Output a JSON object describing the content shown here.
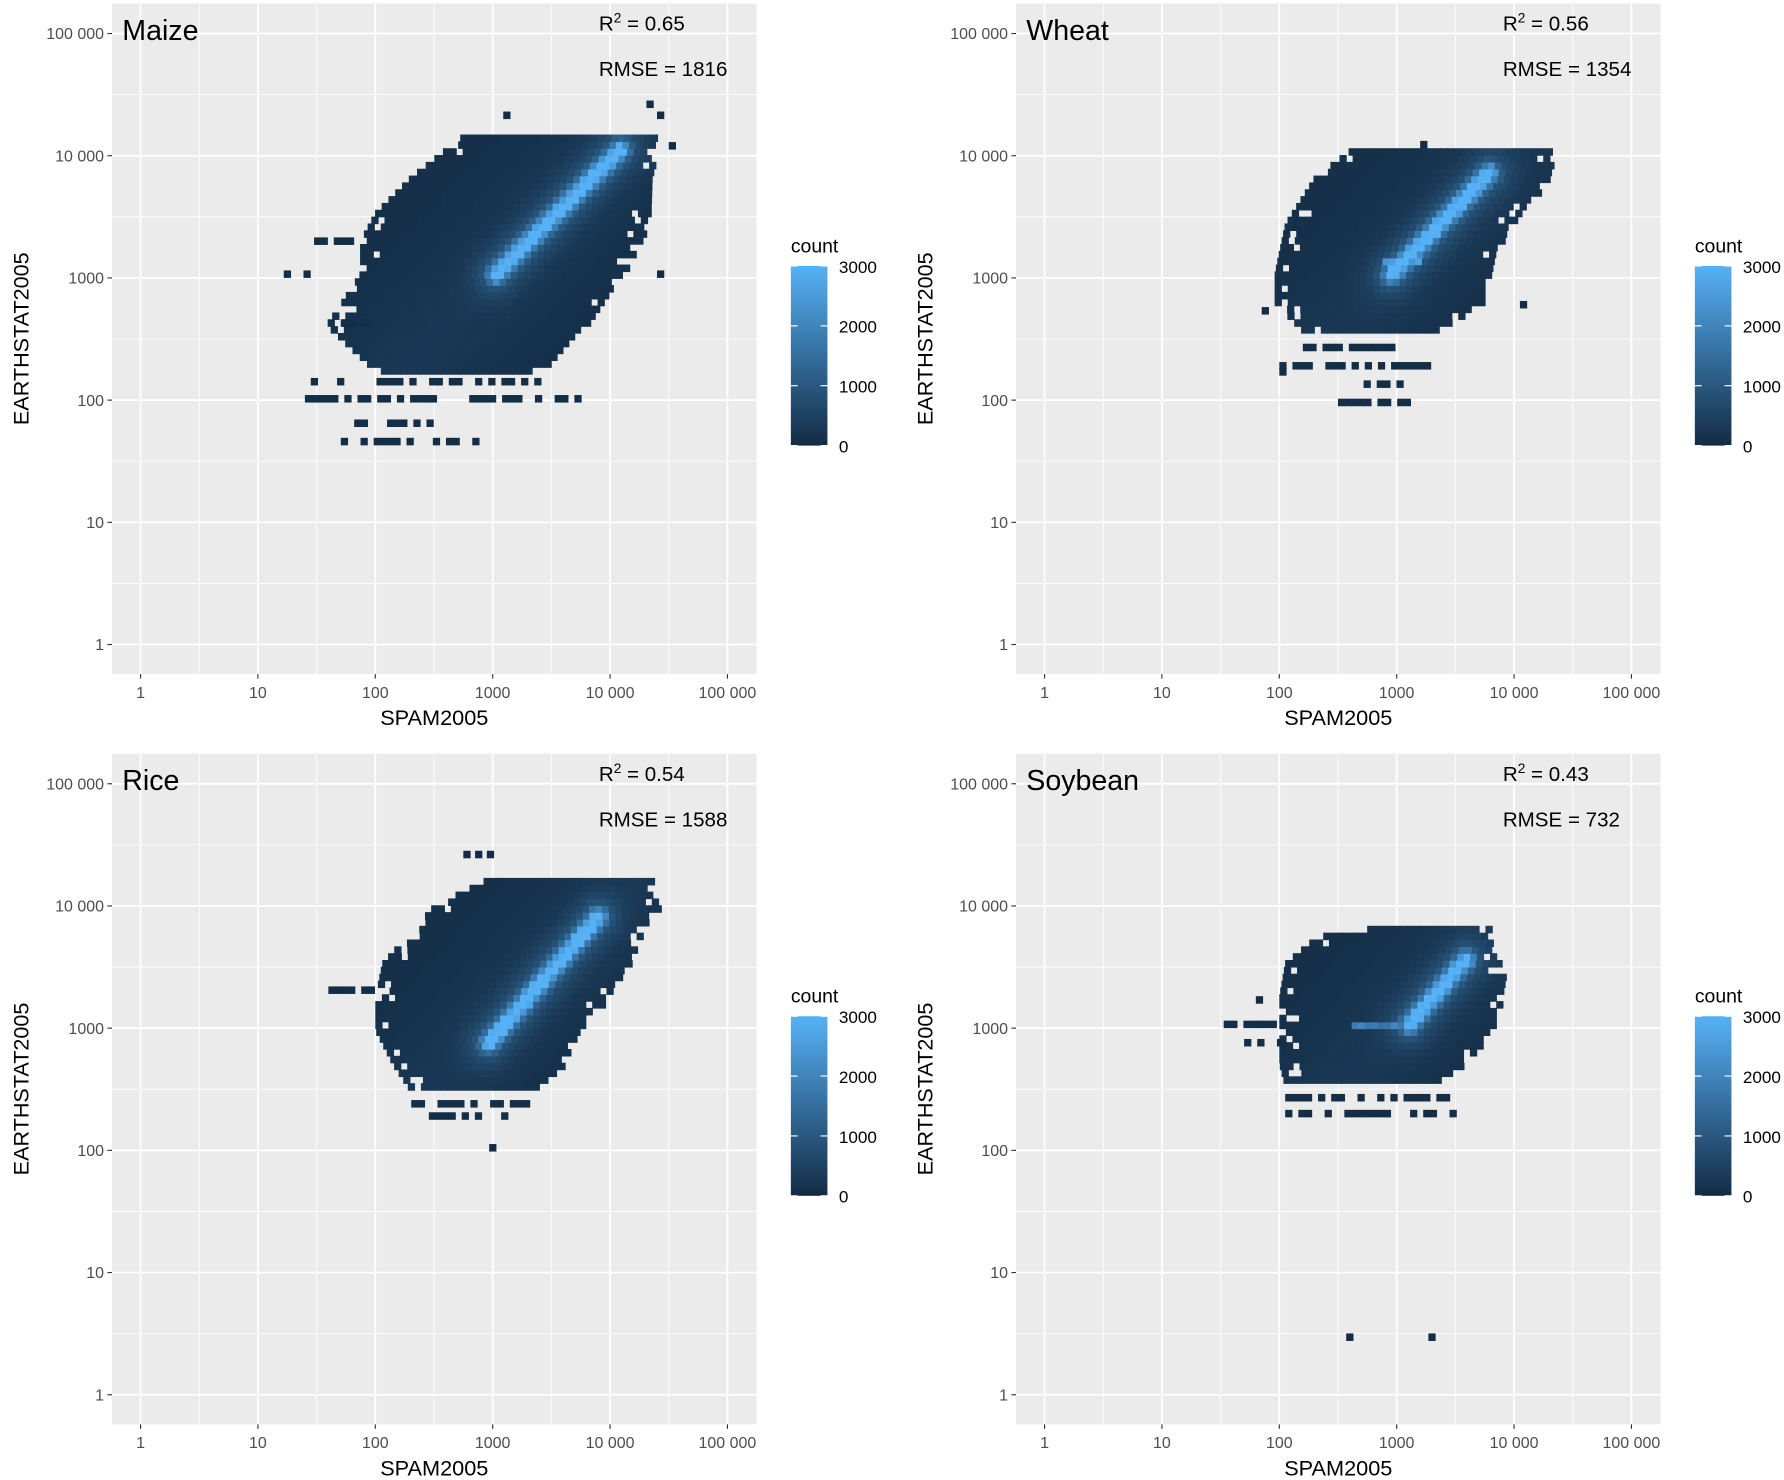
{
  "colors": {
    "panel_bg": "#EBEBEB",
    "grid": "#FFFFFF",
    "low": "#132B43",
    "high": "#56B1F7"
  },
  "chart_data": [
    {
      "type": "heatmap",
      "title": "Maize",
      "xlabel": "SPAM2005",
      "ylabel": "EARTHSTAT2005",
      "r2_prefix": "R",
      "r2_sup": "2",
      "r2_text": " = 0.65",
      "rmse_text": "RMSE = 1816",
      "r2": 0.65,
      "rmse": 1816,
      "body_rows_log10": [
        [
          4.14,
          2.76,
          4.35
        ],
        [
          3.79,
          2.3,
          4.35
        ],
        [
          3.5,
          2.0,
          4.3
        ],
        [
          3.27,
          1.87,
          4.25
        ],
        [
          3.0,
          1.87,
          4.1
        ],
        [
          2.58,
          1.58,
          3.77
        ],
        [
          2.2,
          2.0,
          3.38
        ]
      ],
      "sparse_rows_log10": [
        [
          3.27,
          1.31,
          1.87
        ],
        [
          3.0,
          1.22,
          1.5
        ],
        [
          2.6,
          1.6,
          1.9
        ],
        [
          2.12,
          1.45,
          3.4
        ],
        [
          1.98,
          1.4,
          3.85
        ],
        [
          1.78,
          1.82,
          2.45
        ],
        [
          1.63,
          1.65,
          3.09
        ]
      ],
      "points_log10": [
        [
          4.31,
          4.39
        ],
        [
          4.4,
          4.3
        ],
        [
          3.09,
          4.3
        ],
        [
          4.4,
          3.0
        ],
        [
          4.5,
          4.05
        ]
      ],
      "ridge": {
        "from": [
          3.0,
          3.0
        ],
        "to": [
          4.06,
          4.02
        ],
        "peak": 3000
      },
      "band": null
    },
    {
      "type": "heatmap",
      "title": "Wheat",
      "xlabel": "SPAM2005",
      "ylabel": "EARTHSTAT2005",
      "r2_prefix": "R",
      "r2_sup": "2",
      "r2_text": " = 0.56",
      "rmse_text": "RMSE = 1354",
      "r2": 0.56,
      "rmse": 1354,
      "body_rows_log10": [
        [
          4.0,
          2.59,
          4.29
        ],
        [
          3.79,
          2.3,
          4.29
        ],
        [
          3.41,
          2.05,
          3.95
        ],
        [
          3.0,
          1.96,
          3.76
        ],
        [
          2.76,
          1.96,
          3.7
        ],
        [
          2.53,
          2.2,
          3.32
        ]
      ],
      "sparse_rows_log10": [
        [
          2.4,
          2.2,
          3.2
        ],
        [
          2.25,
          2.0,
          3.25
        ],
        [
          2.1,
          2.55,
          3.2
        ],
        [
          1.95,
          2.5,
          3.1
        ]
      ],
      "points_log10": [
        [
          3.2,
          4.06
        ],
        [
          4.05,
          2.75
        ],
        [
          2.0,
          2.2
        ],
        [
          1.85,
          2.7
        ]
      ],
      "ridge": {
        "from": [
          2.93,
          3.0
        ],
        "to": [
          3.76,
          3.83
        ],
        "peak": 3000
      },
      "band": {
        "ly": 3.1,
        "from": 2.85,
        "to": 3.2,
        "peak": 2800
      }
    },
    {
      "type": "heatmap",
      "title": "Rice",
      "xlabel": "SPAM2005",
      "ylabel": "EARTHSTAT2005",
      "r2_prefix": "R",
      "r2_sup": "2",
      "r2_text": " = 0.54",
      "rmse_text": "RMSE = 1588",
      "r2": 0.54,
      "rmse": 1588,
      "body_rows_log10": [
        [
          4.2,
          2.99,
          4.35
        ],
        [
          3.97,
          2.5,
          4.4
        ],
        [
          3.5,
          2.06,
          4.15
        ],
        [
          3.23,
          2.0,
          3.96
        ],
        [
          2.95,
          2.0,
          3.75
        ],
        [
          2.67,
          2.15,
          3.6
        ],
        [
          2.44,
          2.31,
          3.28
        ]
      ],
      "sparse_rows_log10": [
        [
          3.28,
          1.6,
          2.0
        ],
        [
          2.35,
          2.25,
          3.35
        ],
        [
          2.25,
          2.4,
          3.1
        ]
      ],
      "points_log10": [
        [
          2.97,
          1.99
        ],
        [
          2.75,
          4.39
        ],
        [
          2.85,
          4.39
        ],
        [
          2.95,
          4.39
        ],
        [
          1.66,
          3.28
        ]
      ],
      "ridge": {
        "from": [
          2.94,
          2.85
        ],
        "to": [
          3.87,
          3.88
        ],
        "peak": 3000
      },
      "band": null
    },
    {
      "type": "heatmap",
      "title": "Soybean",
      "xlabel": "SPAM2005",
      "ylabel": "EARTHSTAT2005",
      "r2_prefix": "R",
      "r2_sup": "2",
      "r2_text": " = 0.43",
      "rmse_text": "RMSE = 732",
      "r2": 0.43,
      "rmse": 732,
      "body_rows_log10": [
        [
          3.83,
          2.78,
          3.76
        ],
        [
          3.7,
          2.3,
          3.76
        ],
        [
          3.5,
          2.05,
          3.86
        ],
        [
          3.23,
          2.0,
          3.9
        ],
        [
          2.95,
          2.0,
          3.78
        ],
        [
          2.67,
          2.0,
          3.56
        ],
        [
          2.49,
          2.05,
          3.3
        ]
      ],
      "sparse_rows_log10": [
        [
          3.0,
          1.47,
          2.0
        ],
        [
          2.85,
          1.7,
          2.0
        ],
        [
          2.4,
          2.05,
          3.55
        ],
        [
          2.27,
          2.05,
          3.55
        ]
      ],
      "points_log10": [
        [
          2.57,
          0.44
        ],
        [
          3.27,
          0.44
        ],
        [
          1.8,
          3.2
        ]
      ],
      "ridge": {
        "from": [
          3.08,
          3.0
        ],
        "to": [
          3.56,
          3.53
        ],
        "peak": 3000
      },
      "band": {
        "ly": 3.0,
        "from": 2.6,
        "to": 3.1,
        "peak": 2200
      }
    }
  ],
  "axes": {
    "x_ticks": [
      "1",
      "10",
      "100",
      "1000",
      "10 000",
      "100 000"
    ],
    "y_ticks": [
      "1",
      "10",
      "100",
      "1000",
      "10 000",
      "100 000"
    ],
    "log10_range_x": [
      -0.25,
      5.25
    ],
    "log10_range_y": [
      -0.25,
      5.25
    ]
  },
  "legend": {
    "title": "count",
    "ticks": [
      "3000",
      "2000",
      "1000",
      "0"
    ],
    "tick_values": [
      3000,
      2000,
      1000,
      0
    ],
    "range": [
      0,
      3000
    ],
    "placement": "right"
  }
}
